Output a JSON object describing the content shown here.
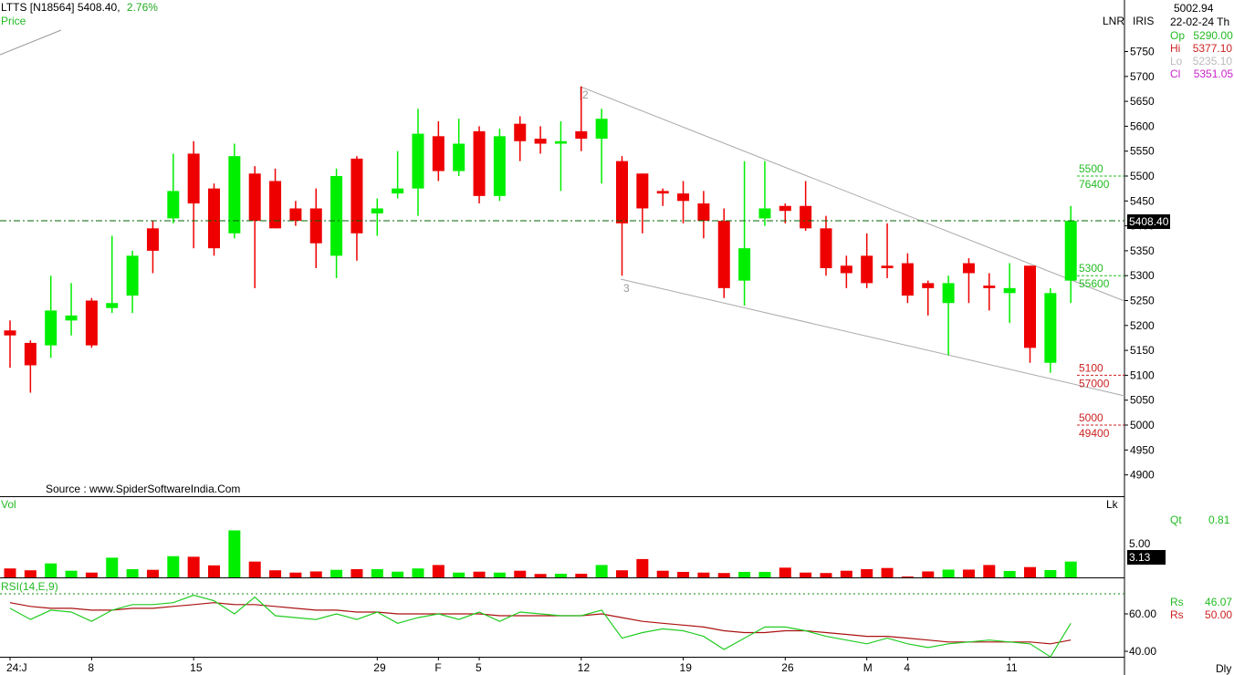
{
  "header": {
    "symbol": "LTTS [N18564]",
    "price": "5408.40,",
    "change": "2.76%",
    "price_label": "Price"
  },
  "toolbar": {
    "lnr": "LNR",
    "iris": "IRIS"
  },
  "info_panel": {
    "top_value": "5002.94",
    "date": "22-02-24",
    "day": "Th",
    "open_label": "Op",
    "open": "5290.00",
    "high_label": "Hi",
    "high": "5377.10",
    "low_label": "Lo",
    "low": "5235.10",
    "close_label": "Cl",
    "close": "5351.05"
  },
  "source_text": "Source : www.SpiderSoftwareIndia.Com",
  "current_price_tag": "5408.40",
  "vol": {
    "label": "Vol",
    "scale_label": "Lk",
    "level_tick": "5.00",
    "current_tag": "3.13",
    "qt_label": "Qt",
    "qt_value": "0.81"
  },
  "rsi": {
    "label": "RSI(14,E,9)",
    "rs1_label": "Rs",
    "rs1_value": "46.07",
    "rs2_label": "Rs",
    "rs2_value": "50.00",
    "ticks": [
      "60.00",
      "40.00"
    ]
  },
  "timeframe": "Dly",
  "levels": [
    {
      "price": "5500",
      "qty": "76400",
      "color": "#22bb22"
    },
    {
      "price": "5300",
      "qty": "55600",
      "color": "#22bb22"
    },
    {
      "price": "5100",
      "qty": "57000",
      "color": "#cc2222"
    },
    {
      "price": "5000",
      "qty": "49400",
      "color": "#cc2222"
    }
  ],
  "wave_labels": [
    "2",
    "3"
  ],
  "colors": {
    "up": "#00ee00",
    "down": "#ee0000",
    "rsi_line": "#22cc22",
    "rsi_signal": "#aa1111",
    "price_line": "#006600"
  },
  "chart_data": {
    "type": "candlestick",
    "y_axis": {
      "ticks": [
        4900,
        4950,
        5000,
        5050,
        5100,
        5150,
        5200,
        5250,
        5300,
        5350,
        5400,
        5450,
        5500,
        5550,
        5600,
        5650,
        5700,
        5750
      ],
      "range": [
        4885,
        5790
      ]
    },
    "x_labels": [
      "24:J",
      "8",
      "15",
      "29",
      "F",
      "5",
      "12",
      "19",
      "26",
      "M",
      "4",
      "11"
    ],
    "x_label_index": [
      0,
      4,
      9,
      18,
      21,
      23,
      28,
      33,
      38,
      42,
      44,
      49
    ],
    "candles": [
      {
        "o": 5190,
        "h": 5210,
        "l": 5115,
        "c": 5180
      },
      {
        "o": 5165,
        "h": 5170,
        "l": 5065,
        "c": 5120
      },
      {
        "o": 5160,
        "h": 5300,
        "l": 5135,
        "c": 5230
      },
      {
        "o": 5210,
        "h": 5285,
        "l": 5180,
        "c": 5220
      },
      {
        "o": 5250,
        "h": 5255,
        "l": 5155,
        "c": 5160
      },
      {
        "o": 5235,
        "h": 5380,
        "l": 5225,
        "c": 5245
      },
      {
        "o": 5260,
        "h": 5350,
        "l": 5225,
        "c": 5340
      },
      {
        "o": 5395,
        "h": 5410,
        "l": 5305,
        "c": 5350
      },
      {
        "o": 5415,
        "h": 5545,
        "l": 5405,
        "c": 5470
      },
      {
        "o": 5545,
        "h": 5570,
        "l": 5355,
        "c": 5445
      },
      {
        "o": 5475,
        "h": 5485,
        "l": 5340,
        "c": 5355
      },
      {
        "o": 5385,
        "h": 5565,
        "l": 5375,
        "c": 5540
      },
      {
        "o": 5505,
        "h": 5520,
        "l": 5275,
        "c": 5410
      },
      {
        "o": 5490,
        "h": 5515,
        "l": 5395,
        "c": 5395
      },
      {
        "o": 5435,
        "h": 5450,
        "l": 5400,
        "c": 5410
      },
      {
        "o": 5435,
        "h": 5475,
        "l": 5315,
        "c": 5365
      },
      {
        "o": 5340,
        "h": 5515,
        "l": 5295,
        "c": 5500
      },
      {
        "o": 5535,
        "h": 5540,
        "l": 5330,
        "c": 5385
      },
      {
        "o": 5425,
        "h": 5455,
        "l": 5380,
        "c": 5435
      },
      {
        "o": 5465,
        "h": 5550,
        "l": 5455,
        "c": 5475
      },
      {
        "o": 5475,
        "h": 5635,
        "l": 5420,
        "c": 5585
      },
      {
        "o": 5580,
        "h": 5610,
        "l": 5490,
        "c": 5510
      },
      {
        "o": 5510,
        "h": 5615,
        "l": 5500,
        "c": 5565
      },
      {
        "o": 5590,
        "h": 5600,
        "l": 5445,
        "c": 5460
      },
      {
        "o": 5460,
        "h": 5595,
        "l": 5450,
        "c": 5580
      },
      {
        "o": 5605,
        "h": 5620,
        "l": 5530,
        "c": 5570
      },
      {
        "o": 5575,
        "h": 5600,
        "l": 5545,
        "c": 5565
      },
      {
        "o": 5565,
        "h": 5610,
        "l": 5470,
        "c": 5570
      },
      {
        "o": 5590,
        "h": 5680,
        "l": 5550,
        "c": 5575
      },
      {
        "o": 5575,
        "h": 5635,
        "l": 5485,
        "c": 5615
      },
      {
        "o": 5530,
        "h": 5540,
        "l": 5300,
        "c": 5405
      },
      {
        "o": 5505,
        "h": 5505,
        "l": 5385,
        "c": 5435
      },
      {
        "o": 5470,
        "h": 5475,
        "l": 5440,
        "c": 5465
      },
      {
        "o": 5465,
        "h": 5490,
        "l": 5405,
        "c": 5450
      },
      {
        "o": 5445,
        "h": 5470,
        "l": 5375,
        "c": 5410
      },
      {
        "o": 5410,
        "h": 5435,
        "l": 5255,
        "c": 5275
      },
      {
        "o": 5290,
        "h": 5530,
        "l": 5240,
        "c": 5355
      },
      {
        "o": 5415,
        "h": 5530,
        "l": 5400,
        "c": 5435
      },
      {
        "o": 5440,
        "h": 5445,
        "l": 5405,
        "c": 5430
      },
      {
        "o": 5440,
        "h": 5490,
        "l": 5390,
        "c": 5395
      },
      {
        "o": 5395,
        "h": 5420,
        "l": 5300,
        "c": 5315
      },
      {
        "o": 5320,
        "h": 5340,
        "l": 5275,
        "c": 5305
      },
      {
        "o": 5340,
        "h": 5385,
        "l": 5275,
        "c": 5285
      },
      {
        "o": 5320,
        "h": 5405,
        "l": 5295,
        "c": 5315
      },
      {
        "o": 5325,
        "h": 5345,
        "l": 5245,
        "c": 5260
      },
      {
        "o": 5285,
        "h": 5290,
        "l": 5220,
        "c": 5275
      },
      {
        "o": 5245,
        "h": 5300,
        "l": 5140,
        "c": 5285
      },
      {
        "o": 5325,
        "h": 5335,
        "l": 5245,
        "c": 5305
      },
      {
        "o": 5280,
        "h": 5305,
        "l": 5230,
        "c": 5275
      },
      {
        "o": 5265,
        "h": 5325,
        "l": 5205,
        "c": 5275
      },
      {
        "o": 5320,
        "h": 5320,
        "l": 5125,
        "c": 5155
      },
      {
        "o": 5125,
        "h": 5275,
        "l": 5105,
        "c": 5265
      },
      {
        "o": 5290,
        "h": 5440,
        "l": 5245,
        "c": 5410
      }
    ],
    "volume": [
      0.78,
      0.62,
      1.22,
      0.58,
      0.42,
      1.72,
      0.72,
      0.66,
      1.85,
      1.8,
      1.05,
      4.1,
      1.38,
      0.62,
      0.42,
      0.52,
      0.66,
      0.72,
      0.72,
      0.5,
      0.78,
      1.08,
      0.42,
      0.5,
      0.42,
      0.58,
      0.3,
      0.32,
      0.32,
      1.08,
      0.62,
      1.6,
      0.58,
      0.48,
      0.42,
      0.38,
      0.48,
      0.48,
      0.85,
      0.42,
      0.38,
      0.58,
      0.72,
      0.82,
      0.05,
      0.52,
      0.68,
      0.68,
      1.08,
      0.56,
      0.9,
      0.64,
      1.38
    ],
    "rsi": [
      63,
      57,
      62,
      61,
      56,
      62,
      65,
      65,
      66,
      70,
      67,
      60,
      69,
      59,
      58,
      57,
      60,
      57,
      61,
      55,
      58,
      60,
      57,
      61,
      56,
      61,
      60,
      59,
      59,
      62,
      47,
      50,
      52,
      51,
      48,
      41,
      47,
      53,
      53,
      51,
      48,
      46,
      44,
      47,
      44,
      42,
      44,
      45,
      46,
      45,
      44,
      37,
      55
    ],
    "rsi_signal": [
      66,
      64,
      63,
      63,
      62,
      62,
      63,
      63,
      64,
      65,
      66,
      65,
      65,
      64,
      63,
      62,
      62,
      61,
      61,
      60,
      60,
      60,
      60,
      60,
      59,
      59,
      59,
      59,
      59,
      60,
      58,
      56,
      55,
      54,
      53,
      51,
      50,
      50,
      51,
      51,
      50,
      49,
      48,
      48,
      47,
      46,
      45,
      45,
      45,
      45,
      45,
      44,
      46
    ],
    "rsi_range": [
      32,
      75
    ],
    "volume_range": [
      0,
      7
    ]
  }
}
